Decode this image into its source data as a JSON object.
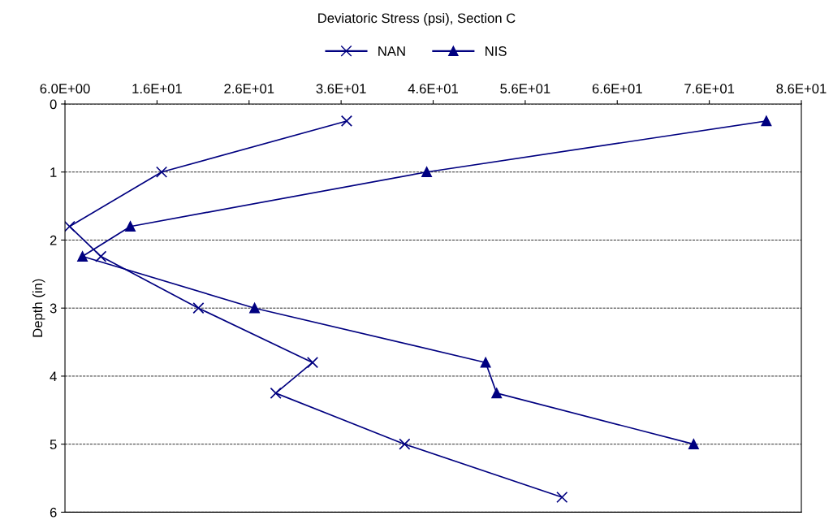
{
  "chart_data": {
    "type": "line",
    "title": "Deviatoric Stress (psi), Section C",
    "ylabel": "Depth (in)",
    "series": [
      {
        "name": "NAN",
        "color": "#000080",
        "marker": "cross",
        "x": [
          36.6,
          16.5,
          6.5,
          9.9,
          20.5,
          32.9,
          28.9,
          42.9,
          60.0
        ],
        "values": [
          0.25,
          1.0,
          1.8,
          2.24,
          3.0,
          3.8,
          4.25,
          5.0,
          5.78
        ]
      },
      {
        "name": "NIS",
        "color": "#000080",
        "marker": "triangle",
        "x": [
          82.2,
          45.3,
          13.1,
          7.9,
          26.6,
          51.7,
          52.9,
          74.3
        ],
        "values": [
          0.25,
          1.0,
          1.8,
          2.24,
          3.0,
          3.8,
          4.25,
          5.0
        ]
      }
    ],
    "xlim": [
      6,
      86
    ],
    "xticks": [
      {
        "value": 6,
        "label": "6.0E+00"
      },
      {
        "value": 16,
        "label": "1.6E+01"
      },
      {
        "value": 26,
        "label": "2.6E+01"
      },
      {
        "value": 36,
        "label": "3.6E+01"
      },
      {
        "value": 46,
        "label": "4.6E+01"
      },
      {
        "value": 56,
        "label": "5.6E+01"
      },
      {
        "value": 66,
        "label": "6.6E+01"
      },
      {
        "value": 76,
        "label": "7.6E+01"
      },
      {
        "value": 86,
        "label": "8.6E+01"
      }
    ],
    "ylim": [
      6,
      0
    ],
    "yticks": [
      0,
      1,
      2,
      3,
      4,
      5,
      6
    ],
    "grid": "y",
    "legend": "top",
    "line_style": "solid"
  }
}
